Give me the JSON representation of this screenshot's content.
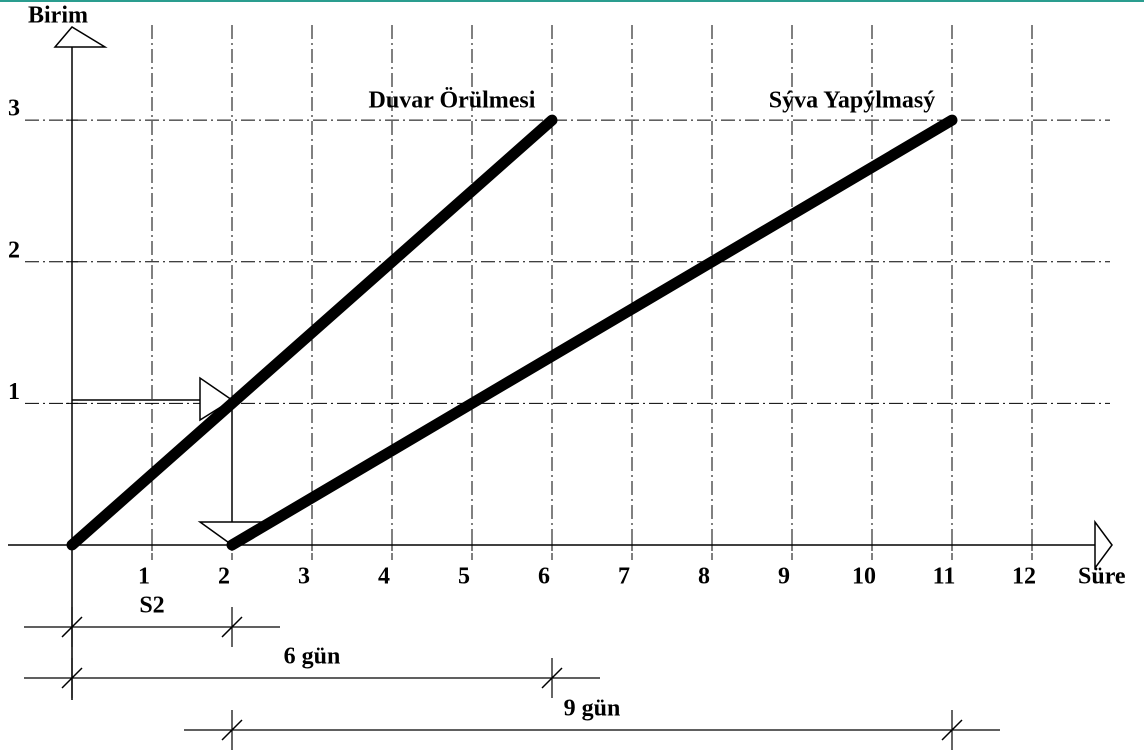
{
  "chart_data": {
    "type": "line",
    "xlabel": "Süre",
    "ylabel": "Birim",
    "series": [
      {
        "name": "Duvar Örülmesi",
        "color": "#000000",
        "x": [
          0,
          6
        ],
        "values": [
          0,
          3
        ]
      },
      {
        "name": "Sýva Yapýlmasý",
        "color": "#000000",
        "x": [
          2,
          11
        ],
        "values": [
          0,
          3
        ]
      }
    ],
    "xlim": [
      0,
      12.85
    ],
    "ylim": [
      0,
      3.7
    ],
    "xticks": [
      1,
      2,
      3,
      4,
      5,
      6,
      7,
      8,
      9,
      10,
      11,
      12
    ],
    "yticks": [
      1,
      2,
      3
    ],
    "grid": true,
    "dimensions": [
      {
        "label": "S2",
        "from": 0,
        "to": 2
      },
      {
        "label": "6 gün",
        "from": 0,
        "to": 6
      },
      {
        "label": "9 gün",
        "from": 2,
        "to": 11
      }
    ]
  }
}
